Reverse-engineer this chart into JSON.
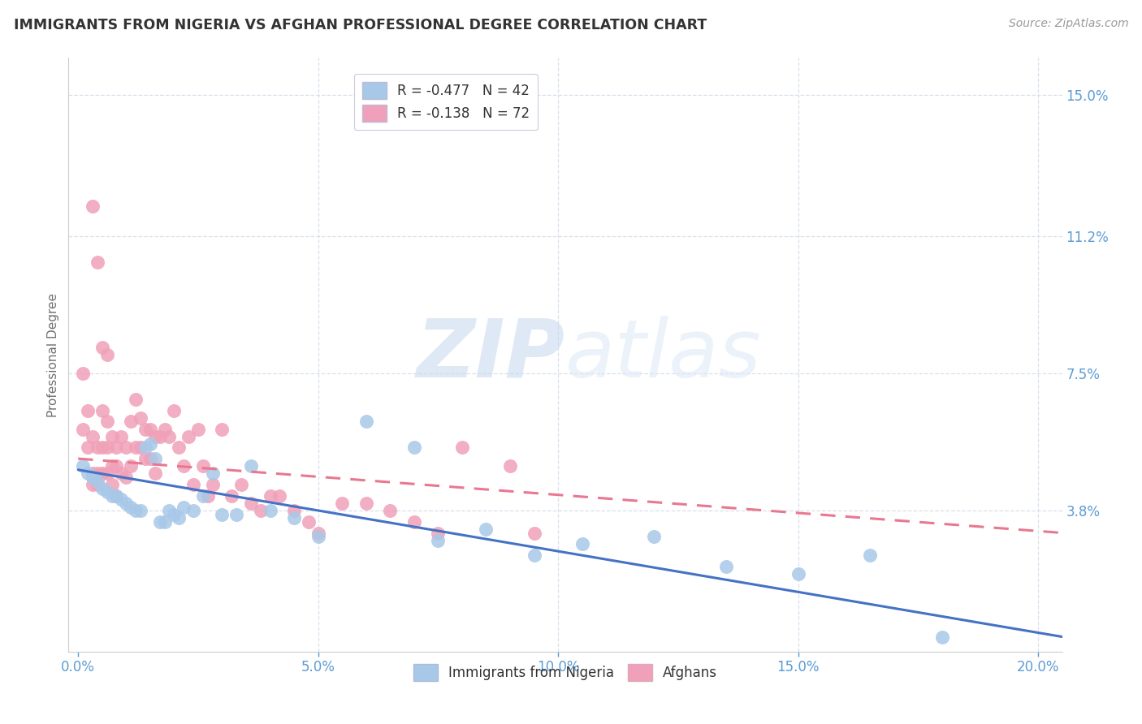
{
  "title": "IMMIGRANTS FROM NIGERIA VS AFGHAN PROFESSIONAL DEGREE CORRELATION CHART",
  "source": "Source: ZipAtlas.com",
  "ylabel_label": "Professional Degree",
  "right_ytick_labels": [
    "15.0%",
    "11.2%",
    "7.5%",
    "3.8%"
  ],
  "right_ytick_values": [
    0.15,
    0.112,
    0.075,
    0.038
  ],
  "xtick_labels": [
    "0.0%",
    "5.0%",
    "10.0%",
    "15.0%",
    "20.0%"
  ],
  "xtick_values": [
    0.0,
    0.05,
    0.1,
    0.15,
    0.2
  ],
  "xlim": [
    -0.002,
    0.205
  ],
  "ylim": [
    0.0,
    0.16
  ],
  "watermark_zip": "ZIP",
  "watermark_atlas": "atlas",
  "nigeria_color": "#a8c8e8",
  "afghan_color": "#f0a0b8",
  "nigeria_line_color": "#4472c4",
  "afghan_line_color": "#e87890",
  "grid_color": "#d8e0ec",
  "axis_color": "#5b9bd5",
  "legend_entries": [
    {
      "label_r": "R = -0.477",
      "label_n": "N = 42",
      "color": "#a8c8e8"
    },
    {
      "label_r": "R = -0.138",
      "label_n": "N = 72",
      "color": "#f0a0b8"
    }
  ],
  "nigeria_scatter_x": [
    0.001,
    0.002,
    0.003,
    0.004,
    0.005,
    0.006,
    0.007,
    0.008,
    0.009,
    0.01,
    0.011,
    0.012,
    0.013,
    0.014,
    0.015,
    0.016,
    0.017,
    0.018,
    0.019,
    0.02,
    0.021,
    0.022,
    0.024,
    0.026,
    0.028,
    0.03,
    0.033,
    0.036,
    0.04,
    0.045,
    0.05,
    0.06,
    0.07,
    0.075,
    0.085,
    0.095,
    0.105,
    0.12,
    0.135,
    0.15,
    0.165,
    0.18
  ],
  "nigeria_scatter_y": [
    0.05,
    0.048,
    0.047,
    0.046,
    0.044,
    0.043,
    0.042,
    0.042,
    0.041,
    0.04,
    0.039,
    0.038,
    0.038,
    0.055,
    0.056,
    0.052,
    0.035,
    0.035,
    0.038,
    0.037,
    0.036,
    0.039,
    0.038,
    0.042,
    0.048,
    0.037,
    0.037,
    0.05,
    0.038,
    0.036,
    0.031,
    0.062,
    0.055,
    0.03,
    0.033,
    0.026,
    0.029,
    0.031,
    0.023,
    0.021,
    0.026,
    0.004
  ],
  "afghan_scatter_x": [
    0.001,
    0.001,
    0.002,
    0.002,
    0.003,
    0.003,
    0.004,
    0.004,
    0.005,
    0.005,
    0.005,
    0.006,
    0.006,
    0.006,
    0.007,
    0.007,
    0.007,
    0.008,
    0.008,
    0.008,
    0.009,
    0.009,
    0.01,
    0.01,
    0.011,
    0.011,
    0.012,
    0.012,
    0.013,
    0.013,
    0.014,
    0.014,
    0.015,
    0.015,
    0.016,
    0.016,
    0.017,
    0.018,
    0.019,
    0.02,
    0.021,
    0.022,
    0.023,
    0.024,
    0.025,
    0.026,
    0.027,
    0.028,
    0.03,
    0.032,
    0.034,
    0.036,
    0.038,
    0.04,
    0.042,
    0.045,
    0.048,
    0.05,
    0.055,
    0.06,
    0.065,
    0.07,
    0.075,
    0.08,
    0.09,
    0.095,
    0.003,
    0.004,
    0.005,
    0.006,
    0.003,
    0.004
  ],
  "afghan_scatter_y": [
    0.075,
    0.06,
    0.065,
    0.055,
    0.058,
    0.048,
    0.055,
    0.045,
    0.065,
    0.055,
    0.048,
    0.062,
    0.055,
    0.048,
    0.058,
    0.05,
    0.045,
    0.055,
    0.05,
    0.042,
    0.058,
    0.048,
    0.055,
    0.047,
    0.062,
    0.05,
    0.068,
    0.055,
    0.063,
    0.055,
    0.06,
    0.052,
    0.06,
    0.052,
    0.058,
    0.048,
    0.058,
    0.06,
    0.058,
    0.065,
    0.055,
    0.05,
    0.058,
    0.045,
    0.06,
    0.05,
    0.042,
    0.045,
    0.06,
    0.042,
    0.045,
    0.04,
    0.038,
    0.042,
    0.042,
    0.038,
    0.035,
    0.032,
    0.04,
    0.04,
    0.038,
    0.035,
    0.032,
    0.055,
    0.05,
    0.032,
    0.12,
    0.105,
    0.082,
    0.08,
    0.045,
    0.048
  ],
  "nigeria_trend_x": [
    0.0,
    0.205
  ],
  "nigeria_trend_y": [
    0.049,
    0.004
  ],
  "afghan_trend_x": [
    0.0,
    0.205
  ],
  "afghan_trend_y": [
    0.052,
    0.032
  ]
}
